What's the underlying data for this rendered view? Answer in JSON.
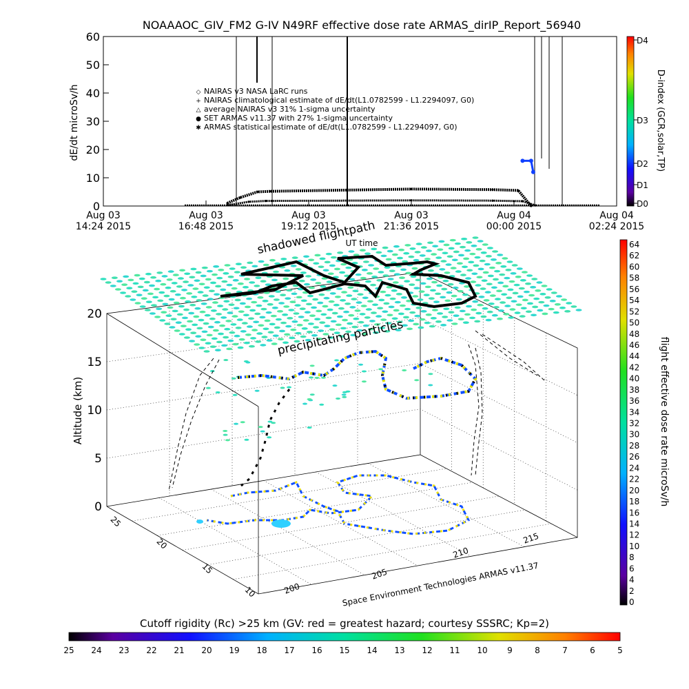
{
  "top_chart": {
    "title": "NOAAAOC_GIV_FM2 G-IV    N49RF   effective dose rate ARMAS_dirIP_Report_56940",
    "ylabel": "dE/dt microSv/h",
    "yticks": [
      "0",
      "10",
      "20",
      "30",
      "40",
      "50",
      "60"
    ],
    "xticks": [
      {
        "l1": "Aug 03",
        "l2": "14:24 2015"
      },
      {
        "l1": "Aug 03",
        "l2": "16:48 2015"
      },
      {
        "l1": "Aug 03",
        "l2": "19:12 2015"
      },
      {
        "l1": "Aug 03",
        "l2": "21:36 2015"
      },
      {
        "l1": "Aug 04",
        "l2": "00:00 2015"
      },
      {
        "l1": "Aug 04",
        "l2": "02:24 2015"
      }
    ],
    "xlabel": "UT time",
    "legend": [
      "NAIRAS v3 NASA LaRC runs",
      "NAIRAS climatological estimate of dE/dt(L1.0782599 - L1.2294097, G0)",
      "average NAIRAS v3 31% 1-sigma uncertainty",
      "SET ARMAS v11.37 with 27% 1-sigma uncertainty",
      "ARMAS statistical estimate of dE/dt(L1.0782599 - L1.2294097, G0)"
    ],
    "colorbar": {
      "label": "D-index (GCR,solar,TP)",
      "ticks": [
        "D0",
        "D1",
        "D2",
        "D3",
        "D4"
      ]
    }
  },
  "chart_data": [
    {
      "type": "scatter",
      "title": "NOAAAOC_GIV_FM2 G-IV    N49RF   effective dose rate ARMAS_dirIP_Report_56940",
      "xlabel": "UT time",
      "ylabel": "dE/dt microSv/h",
      "ylim": [
        0,
        60
      ],
      "x_range": [
        "Aug 03 14:24 2015",
        "Aug 04 02:24 2015"
      ],
      "series": [
        {
          "name": "NAIRAS climatological estimate of dE/dt(L1.0782599 - L1.2294097, G0)",
          "x_hours": [
            17.3,
            17.6,
            18.0,
            18.3,
            21.6,
            23.5,
            24.1,
            24.4
          ],
          "values": [
            1,
            3,
            5,
            5.2,
            6,
            5.8,
            5.5,
            0
          ]
        },
        {
          "name": "ARMAS statistical estimate of dE/dt(L1.0782599 - L1.2294097, G0)",
          "x_hours": [
            17.3,
            17.8,
            18.2,
            21.6,
            23.5,
            24.2,
            24.5
          ],
          "values": [
            0.3,
            1.5,
            1.8,
            2,
            1.9,
            1.7,
            0.2
          ]
        },
        {
          "name": "SET ARMAS v11.37 with 27% 1-sigma uncertainty",
          "x_hours": [
            24.2,
            24.4,
            24.45
          ],
          "values": [
            16,
            16,
            12
          ]
        }
      ]
    }
  ],
  "three_d": {
    "shadow_label": "shadowed flightpath",
    "particles_label": "precipitating particles",
    "zlabel": "Altitude (km)",
    "zticks": [
      "0",
      "5",
      "10",
      "15",
      "20"
    ],
    "yticks": [
      "25",
      "20",
      "15",
      "10"
    ],
    "xticks": [
      "200",
      "205",
      "210",
      "215"
    ],
    "credit": "Space Environment Technologies ARMAS v11.37"
  },
  "right_colorbar": {
    "label": "flight effective dose rate microSv/h",
    "ticks": [
      "0",
      "2",
      "4",
      "6",
      "8",
      "10",
      "12",
      "14",
      "16",
      "18",
      "20",
      "22",
      "24",
      "26",
      "28",
      "30",
      "32",
      "34",
      "36",
      "38",
      "40",
      "42",
      "44",
      "46",
      "48",
      "50",
      "52",
      "54",
      "56",
      "58",
      "60",
      "62",
      "64"
    ]
  },
  "bottom_colorbar": {
    "label": "Cutoff rigidity (Rc) >25 km (GV: red = greatest hazard; courtesy SSSRC; Kp=2)",
    "ticks": [
      "25",
      "24",
      "23",
      "22",
      "21",
      "20",
      "19",
      "18",
      "17",
      "16",
      "15",
      "14",
      "13",
      "12",
      "11",
      "10",
      "9",
      "8",
      "7",
      "6",
      "5"
    ]
  }
}
